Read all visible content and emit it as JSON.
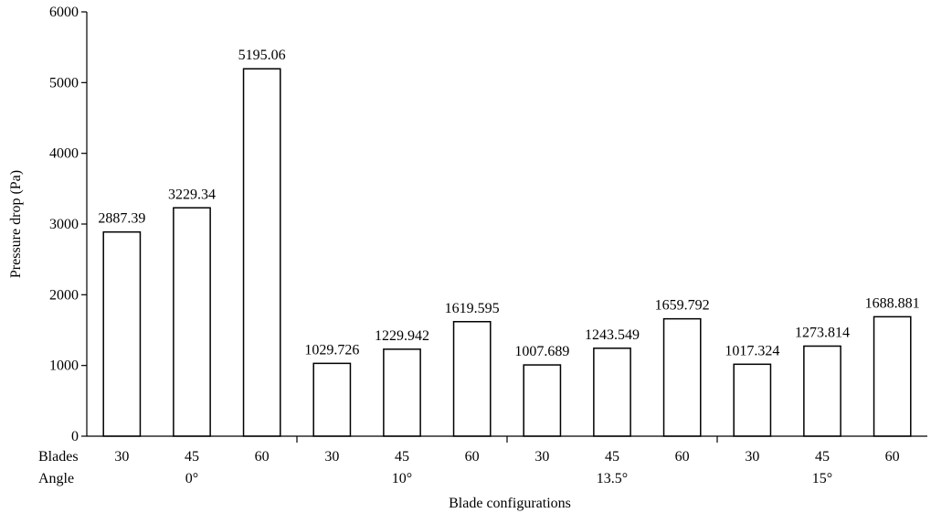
{
  "chart_data": {
    "type": "bar",
    "title": "",
    "xlabel": "Blade configurations",
    "ylabel": "Pressure drop (Pa)",
    "ylim": [
      0,
      6000
    ],
    "yticks": [
      "0",
      "1000",
      "2000",
      "3000",
      "4000",
      "5000",
      "6000"
    ],
    "row_labels": {
      "blades": "Blades",
      "angle": "Angle"
    },
    "groups": [
      {
        "angle": "0°",
        "blades": [
          "30",
          "45",
          "60"
        ],
        "values": [
          2887.39,
          3229.34,
          5195.06
        ],
        "labels": [
          "2887.39",
          "3229.34",
          "5195.06"
        ]
      },
      {
        "angle": "10°",
        "blades": [
          "30",
          "45",
          "60"
        ],
        "values": [
          1029.726,
          1229.942,
          1619.595
        ],
        "labels": [
          "1029.726",
          "1229.942",
          "1619.595"
        ]
      },
      {
        "angle": "13.5°",
        "blades": [
          "30",
          "45",
          "60"
        ],
        "values": [
          1007.689,
          1243.549,
          1659.792
        ],
        "labels": [
          "1007.689",
          "1243.549",
          "1659.792"
        ]
      },
      {
        "angle": "15°",
        "blades": [
          "30",
          "45",
          "60"
        ],
        "values": [
          1017.324,
          1273.814,
          1688.881
        ],
        "labels": [
          "1017.324",
          "1273.814",
          "1688.881"
        ]
      }
    ],
    "bar_fill": "#ffffff",
    "bar_stroke": "#000000",
    "grid": false,
    "legend": "none"
  }
}
